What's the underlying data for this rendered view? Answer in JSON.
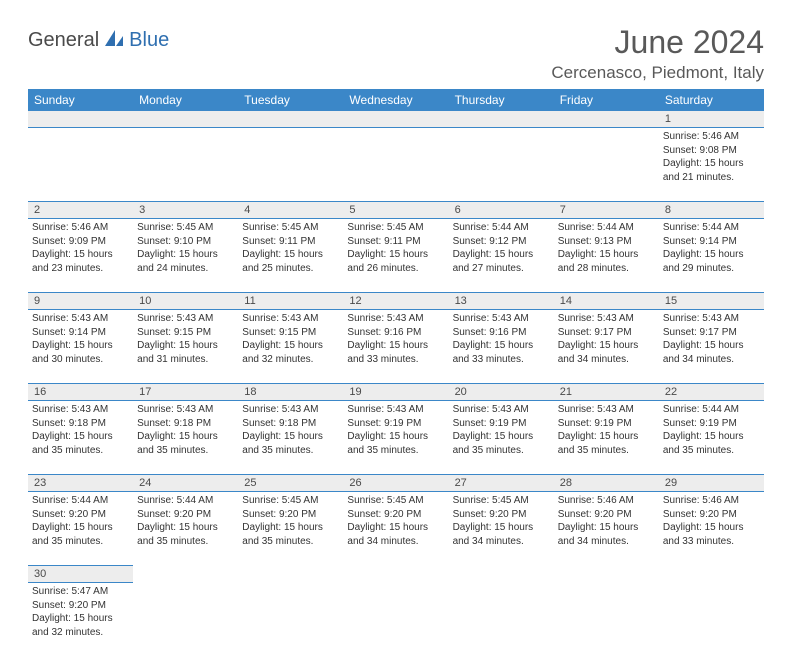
{
  "logo": {
    "part1": "General",
    "part2": "Blue"
  },
  "title": "June 2024",
  "location": "Cercenasco, Piedmont, Italy",
  "colors": {
    "header_bg": "#3b87c8",
    "header_text": "#ffffff",
    "daynum_bg": "#ededed",
    "title_color": "#595959",
    "border": "#3b87c8",
    "logo_blue": "#2f6fb0",
    "logo_gray": "#4a4a4a"
  },
  "day_headers": [
    "Sunday",
    "Monday",
    "Tuesday",
    "Wednesday",
    "Thursday",
    "Friday",
    "Saturday"
  ],
  "weeks": [
    [
      null,
      null,
      null,
      null,
      null,
      null,
      {
        "n": "1",
        "sr": "5:46 AM",
        "ss": "9:08 PM",
        "dl": "15 hours and 21 minutes."
      }
    ],
    [
      {
        "n": "2",
        "sr": "5:46 AM",
        "ss": "9:09 PM",
        "dl": "15 hours and 23 minutes."
      },
      {
        "n": "3",
        "sr": "5:45 AM",
        "ss": "9:10 PM",
        "dl": "15 hours and 24 minutes."
      },
      {
        "n": "4",
        "sr": "5:45 AM",
        "ss": "9:11 PM",
        "dl": "15 hours and 25 minutes."
      },
      {
        "n": "5",
        "sr": "5:45 AM",
        "ss": "9:11 PM",
        "dl": "15 hours and 26 minutes."
      },
      {
        "n": "6",
        "sr": "5:44 AM",
        "ss": "9:12 PM",
        "dl": "15 hours and 27 minutes."
      },
      {
        "n": "7",
        "sr": "5:44 AM",
        "ss": "9:13 PM",
        "dl": "15 hours and 28 minutes."
      },
      {
        "n": "8",
        "sr": "5:44 AM",
        "ss": "9:14 PM",
        "dl": "15 hours and 29 minutes."
      }
    ],
    [
      {
        "n": "9",
        "sr": "5:43 AM",
        "ss": "9:14 PM",
        "dl": "15 hours and 30 minutes."
      },
      {
        "n": "10",
        "sr": "5:43 AM",
        "ss": "9:15 PM",
        "dl": "15 hours and 31 minutes."
      },
      {
        "n": "11",
        "sr": "5:43 AM",
        "ss": "9:15 PM",
        "dl": "15 hours and 32 minutes."
      },
      {
        "n": "12",
        "sr": "5:43 AM",
        "ss": "9:16 PM",
        "dl": "15 hours and 33 minutes."
      },
      {
        "n": "13",
        "sr": "5:43 AM",
        "ss": "9:16 PM",
        "dl": "15 hours and 33 minutes."
      },
      {
        "n": "14",
        "sr": "5:43 AM",
        "ss": "9:17 PM",
        "dl": "15 hours and 34 minutes."
      },
      {
        "n": "15",
        "sr": "5:43 AM",
        "ss": "9:17 PM",
        "dl": "15 hours and 34 minutes."
      }
    ],
    [
      {
        "n": "16",
        "sr": "5:43 AM",
        "ss": "9:18 PM",
        "dl": "15 hours and 35 minutes."
      },
      {
        "n": "17",
        "sr": "5:43 AM",
        "ss": "9:18 PM",
        "dl": "15 hours and 35 minutes."
      },
      {
        "n": "18",
        "sr": "5:43 AM",
        "ss": "9:18 PM",
        "dl": "15 hours and 35 minutes."
      },
      {
        "n": "19",
        "sr": "5:43 AM",
        "ss": "9:19 PM",
        "dl": "15 hours and 35 minutes."
      },
      {
        "n": "20",
        "sr": "5:43 AM",
        "ss": "9:19 PM",
        "dl": "15 hours and 35 minutes."
      },
      {
        "n": "21",
        "sr": "5:43 AM",
        "ss": "9:19 PM",
        "dl": "15 hours and 35 minutes."
      },
      {
        "n": "22",
        "sr": "5:44 AM",
        "ss": "9:19 PM",
        "dl": "15 hours and 35 minutes."
      }
    ],
    [
      {
        "n": "23",
        "sr": "5:44 AM",
        "ss": "9:20 PM",
        "dl": "15 hours and 35 minutes."
      },
      {
        "n": "24",
        "sr": "5:44 AM",
        "ss": "9:20 PM",
        "dl": "15 hours and 35 minutes."
      },
      {
        "n": "25",
        "sr": "5:45 AM",
        "ss": "9:20 PM",
        "dl": "15 hours and 35 minutes."
      },
      {
        "n": "26",
        "sr": "5:45 AM",
        "ss": "9:20 PM",
        "dl": "15 hours and 34 minutes."
      },
      {
        "n": "27",
        "sr": "5:45 AM",
        "ss": "9:20 PM",
        "dl": "15 hours and 34 minutes."
      },
      {
        "n": "28",
        "sr": "5:46 AM",
        "ss": "9:20 PM",
        "dl": "15 hours and 34 minutes."
      },
      {
        "n": "29",
        "sr": "5:46 AM",
        "ss": "9:20 PM",
        "dl": "15 hours and 33 minutes."
      }
    ],
    [
      {
        "n": "30",
        "sr": "5:47 AM",
        "ss": "9:20 PM",
        "dl": "15 hours and 32 minutes."
      },
      null,
      null,
      null,
      null,
      null,
      null
    ]
  ],
  "labels": {
    "sunrise": "Sunrise:",
    "sunset": "Sunset:",
    "daylight": "Daylight:"
  }
}
